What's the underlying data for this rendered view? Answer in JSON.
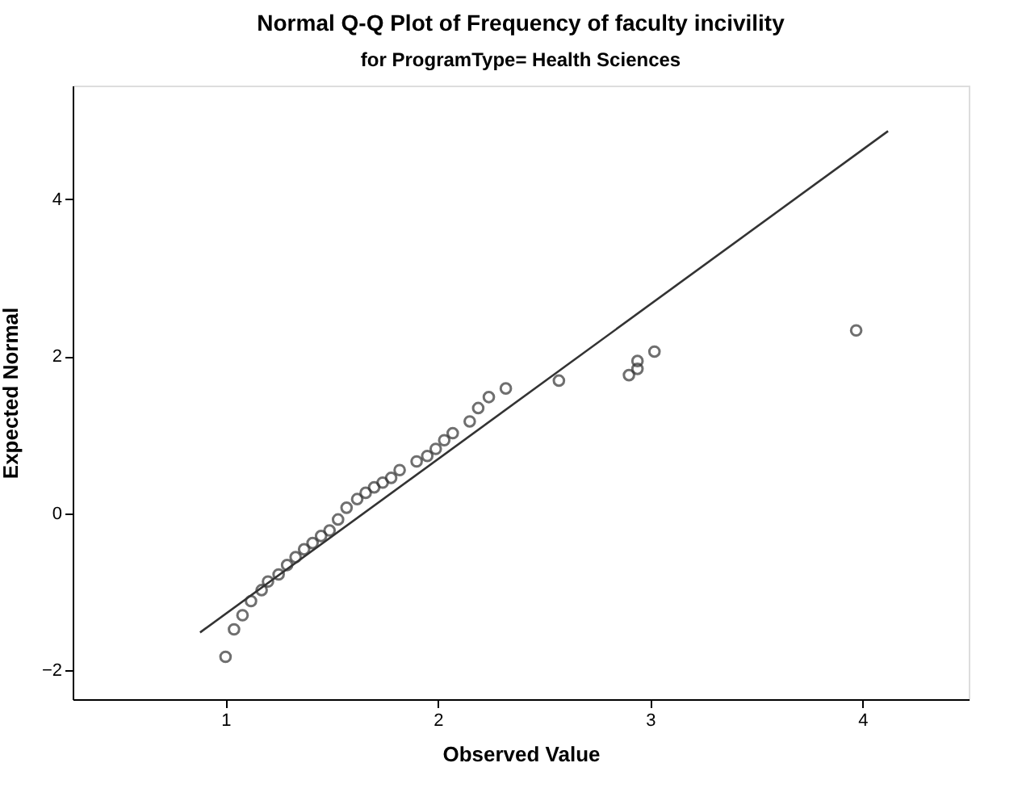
{
  "chart_data": {
    "type": "scatter",
    "title": "Normal Q-Q Plot of Frequency of faculty incivility",
    "subtitle": "for ProgramType= Health Sciences",
    "xlabel": "Observed Value",
    "ylabel": "Expected Normal",
    "xlim": [
      0.28,
      4.5
    ],
    "xticks": [
      1,
      2,
      3,
      4
    ],
    "ylim": [
      -2.37,
      5.45
    ],
    "yticks": [
      -2,
      0,
      2,
      4
    ],
    "grid": false,
    "series": [
      {
        "color": "#333333",
        "marker": "circle",
        "x": [
          1.0,
          1.04,
          1.08,
          1.12,
          1.17,
          1.2,
          1.25,
          1.29,
          1.33,
          1.37,
          1.41,
          1.45,
          1.49,
          1.53,
          1.57,
          1.62,
          1.66,
          1.7,
          1.74,
          1.78,
          1.82,
          1.9,
          1.95,
          1.99,
          2.03,
          2.07,
          2.15,
          2.19,
          2.24,
          2.32,
          2.57,
          2.9,
          2.94,
          2.94,
          3.02,
          3.97
        ],
        "values": [
          -1.83,
          -1.48,
          -1.3,
          -1.12,
          -0.98,
          -0.87,
          -0.78,
          -0.66,
          -0.56,
          -0.46,
          -0.38,
          -0.29,
          -0.22,
          -0.08,
          0.07,
          0.18,
          0.26,
          0.33,
          0.39,
          0.45,
          0.55,
          0.66,
          0.73,
          0.82,
          0.93,
          1.02,
          1.17,
          1.34,
          1.48,
          1.59,
          1.69,
          1.76,
          1.84,
          1.94,
          2.06,
          2.33
        ]
      },
      {
        "type": "line",
        "marker": "none",
        "color": "#333333",
        "x": [
          0.88,
          4.12
        ],
        "values": [
          -1.52,
          4.87
        ]
      }
    ]
  }
}
